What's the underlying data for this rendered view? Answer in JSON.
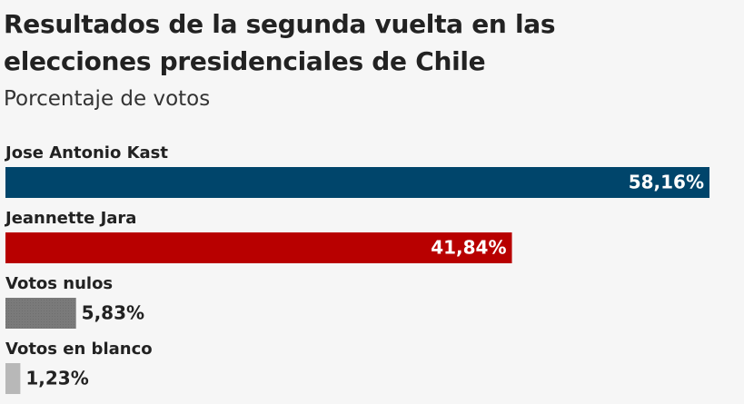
{
  "chart_data": {
    "type": "bar",
    "title": "Resultados de la segunda vuelta en las elecciones presidenciales de Chile",
    "subtitle": "Porcentaje de votos",
    "categories": [
      "Jose Antonio Kast",
      "Jeannette Jara",
      "Votos nulos",
      "Votos en blanco"
    ],
    "values": [
      58.16,
      41.84,
      5.83,
      1.23
    ],
    "value_labels": [
      "58,16%",
      "41,84%",
      "5,83%",
      "1,23%"
    ],
    "colors": [
      "#00456b",
      "#b80000",
      "#777777",
      "#b8b8b8"
    ]
  }
}
